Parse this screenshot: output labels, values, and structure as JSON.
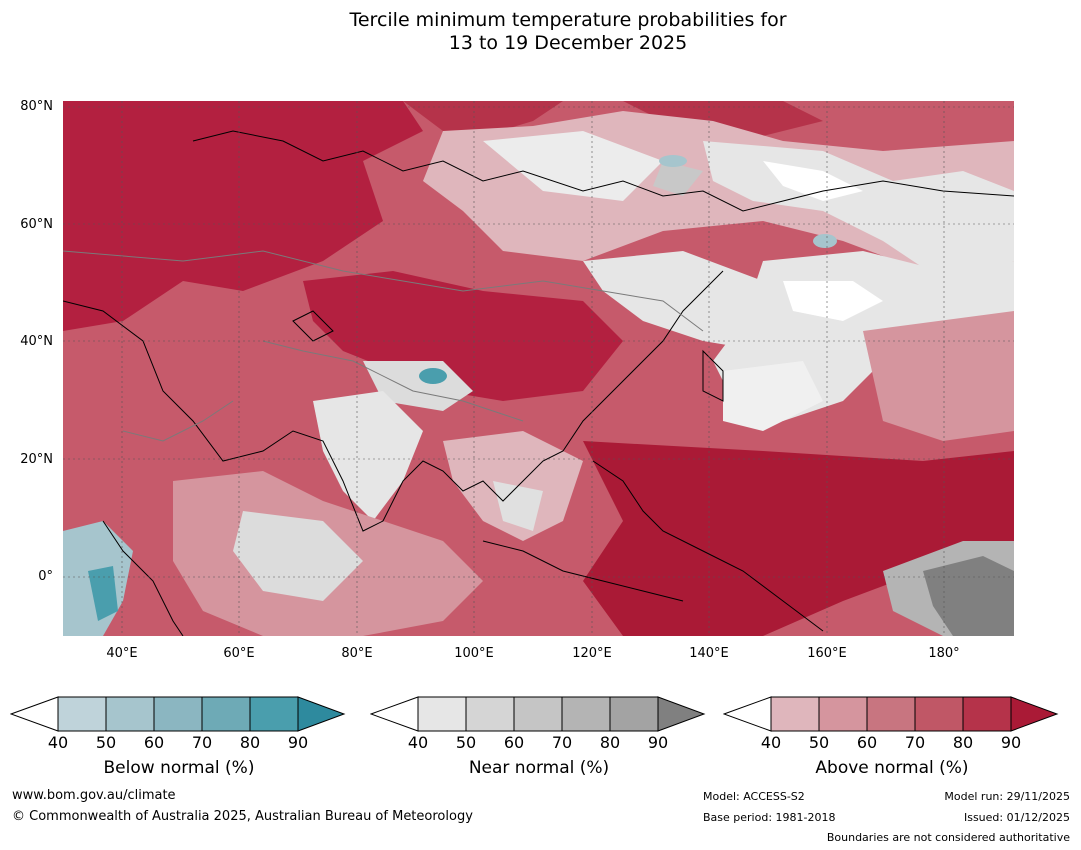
{
  "title_line1": "Tercile minimum temperature probabilities for",
  "title_line2": "13 to 19 December 2025",
  "lat_labels": [
    "80°N",
    "60°N",
    "40°N",
    "20°N",
    "0°"
  ],
  "lon_labels": [
    "40°E",
    "60°E",
    "80°E",
    "100°E",
    "120°E",
    "140°E",
    "160°E",
    "180°"
  ],
  "legends": {
    "below": {
      "label": "Below normal (%)",
      "ticks": [
        "40",
        "50",
        "60",
        "70",
        "80",
        "90"
      ],
      "colors": [
        "#ffffff",
        "#bfd3da",
        "#a6c5cd",
        "#8bb6c1",
        "#6eaab6",
        "#4a9ead",
        "#2e8a9e"
      ]
    },
    "near": {
      "label": "Near normal (%)",
      "ticks": [
        "40",
        "50",
        "60",
        "70",
        "80",
        "90"
      ],
      "colors": [
        "#ffffff",
        "#e6e6e6",
        "#d5d5d5",
        "#c5c5c5",
        "#b4b4b4",
        "#a3a3a3",
        "#808080"
      ]
    },
    "above": {
      "label": "Above normal (%)",
      "ticks": [
        "40",
        "50",
        "60",
        "70",
        "80",
        "90"
      ],
      "colors": [
        "#ffffff",
        "#dfb6bc",
        "#d5959e",
        "#c87580",
        "#c05766",
        "#b5334a",
        "#aa1a36"
      ]
    }
  },
  "footer": {
    "website": "www.bom.gov.au/climate",
    "copyright": "© Commonwealth of Australia 2025, Australian Bureau of Meteorology",
    "model": "Model: ACCESS-S2",
    "base_period": "Base period: 1981-2018",
    "model_run": "Model run: 29/11/2025",
    "issued": "Issued: 01/12/2025",
    "boundaries": "Boundaries are not considered authoritative"
  }
}
